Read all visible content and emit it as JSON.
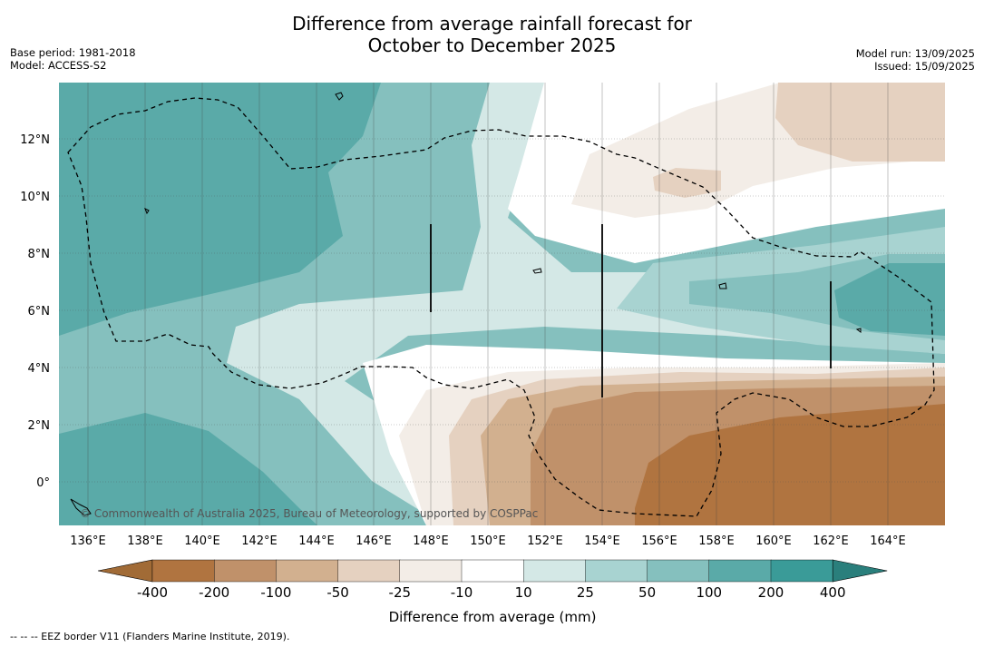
{
  "title_line1": "Difference from average rainfall forecast for",
  "title_line2": "October to December 2025",
  "base_period": "Base period: 1981-2018",
  "model": "Model: ACCESS-S2",
  "model_run": "Model run: 13/09/2025",
  "issued": "Issued: 15/09/2025",
  "copyright": "© Commonwealth of Australia 2025, Bureau of Meteorology, supported by COSPPac",
  "footnote": "--  --  -- EEZ border V11 (Flanders Marine Institute, 2019).",
  "lat_labels": [
    "12°N",
    "10°N",
    "8°N",
    "6°N",
    "4°N",
    "2°N",
    "0°"
  ],
  "lon_labels": [
    "136°E",
    "138°E",
    "140°E",
    "142°E",
    "144°E",
    "146°E",
    "148°E",
    "150°E",
    "152°E",
    "154°E",
    "156°E",
    "158°E",
    "160°E",
    "162°E",
    "164°E"
  ],
  "colorbar": {
    "title": "Difference from average (mm)",
    "ticks": [
      "-400",
      "-200",
      "-100",
      "-50",
      "-25",
      "-10",
      "10",
      "25",
      "50",
      "100",
      "200",
      "400"
    ],
    "colors": [
      "#a16b36",
      "#b07440",
      "#c0916a",
      "#d2b08f",
      "#e5d1c0",
      "#f3ede7",
      "#ffffff",
      "#d4e8e6",
      "#a8d3d1",
      "#85c0be",
      "#5aaaa8",
      "#3a9b98",
      "#2a7f7c"
    ]
  }
}
